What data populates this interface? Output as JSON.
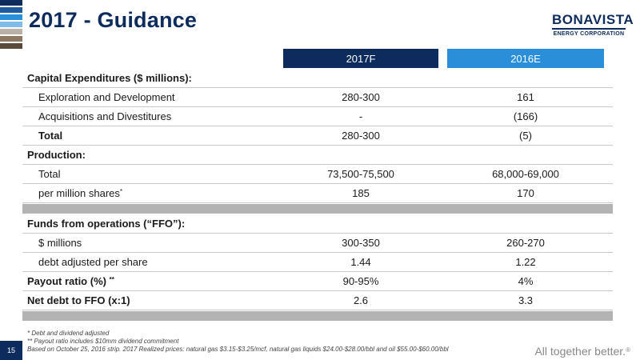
{
  "title": "2017 - Guidance",
  "logo": {
    "main": "BONAVISTA",
    "sub": "ENERGY CORPORATION"
  },
  "columns": {
    "col1": "2017F",
    "col2": "2016E"
  },
  "stripe_colors": [
    "#0d2b5c",
    "#1e5a9c",
    "#2a8fd8",
    "#7fbce8",
    "#b9b1a6",
    "#8c7863",
    "#5a4a3a"
  ],
  "rows": [
    {
      "label": "Capital Expenditures ($ millions):",
      "v1": "",
      "v2": ""
    },
    {
      "label": "Exploration and Development",
      "v1": "280-300",
      "v2": "161"
    },
    {
      "label": "Acquisitions and Divestitures",
      "v1": "-",
      "v2": "(166)"
    },
    {
      "label": "Total",
      "v1": "280-300",
      "v2": "(5)"
    },
    {
      "label": "Production:",
      "v1": "",
      "v2": ""
    },
    {
      "label": "Total",
      "v1": "73,500-75,500",
      "v2": "68,000-69,000"
    },
    {
      "label": "per million shares",
      "sup": "*",
      "v1": "185",
      "v2": "170"
    },
    {
      "label": "Funds from operations (“FFO”):",
      "v1": "",
      "v2": ""
    },
    {
      "label": "$ millions",
      "v1": "300-350",
      "v2": "260-270"
    },
    {
      "label": "debt adjusted per share",
      "v1": "1.44",
      "v2": "1.22"
    },
    {
      "label": "Payout ratio (%)",
      "sup": "**",
      "v1": "90-95%",
      "v2": "4%"
    },
    {
      "label": "Net debt to FFO (x:1)",
      "v1": "2.6",
      "v2": "3.3"
    }
  ],
  "footnotes": [
    "* Debt and dividend adjusted",
    "** Payout ratio includes $10mm dividend commitment",
    "Based on October 25, 2016 strip. 2017 Realized prices: natural gas $3.15-$3.25/mcf, natural gas liquids $24.00-$28.00/bbl and oil $55.00-$60.00/bbl"
  ],
  "page_number": "15",
  "tagline": {
    "text": "All together better.",
    "mark": "®"
  }
}
